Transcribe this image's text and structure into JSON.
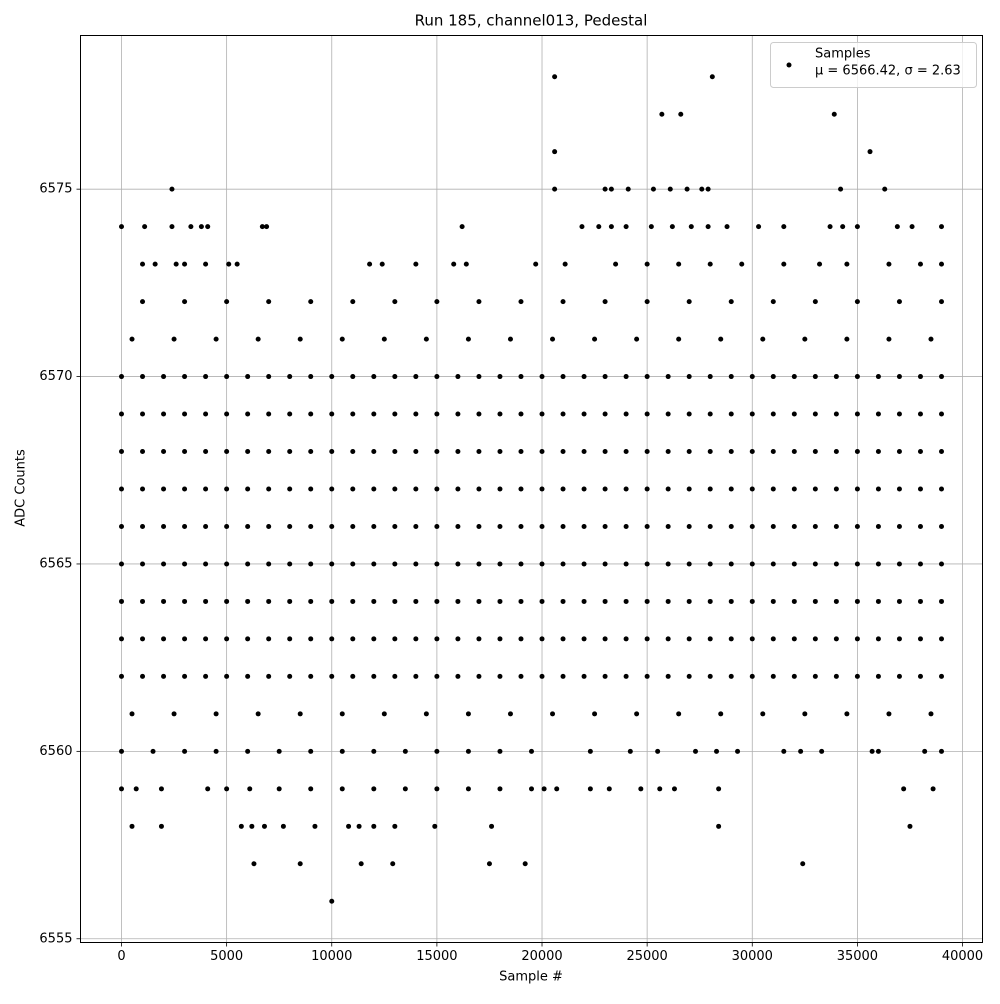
{
  "chart_data": {
    "type": "scatter",
    "title": "Run 185, channel013, Pedestal",
    "x_label": "Sample #",
    "y_label": "ADC Counts",
    "xlim": [
      -1950,
      40950
    ],
    "ylim": [
      6554.9,
      6579.1
    ],
    "xticks": [
      0,
      5000,
      10000,
      15000,
      20000,
      25000,
      30000,
      35000,
      40000
    ],
    "yticks": [
      6555,
      6560,
      6565,
      6570,
      6575
    ],
    "grid": true,
    "legend": "upper right",
    "series": [
      {
        "name": "Samples",
        "stats": "μ = 6566.42, σ = 2.63",
        "color": "#000000",
        "x": [
          0,
          1000,
          2000,
          3000,
          4000,
          5000,
          6000,
          7000,
          8000,
          9000,
          10000,
          11000,
          12000,
          13000,
          14000,
          15000,
          16000,
          17000,
          18000,
          19000,
          20000,
          21000,
          22000,
          23000,
          24000,
          25000,
          26000,
          27000,
          28000,
          29000,
          30000,
          31000,
          32000,
          33000,
          34000,
          35000,
          36000,
          37000,
          38000,
          39000,
          0,
          1000,
          2000,
          3000,
          4000,
          5000,
          6000,
          7000,
          8000,
          9000,
          10000,
          11000,
          12000,
          13000,
          14000,
          15000,
          16000,
          17000,
          18000,
          19000,
          20000,
          21000,
          22000,
          23000,
          24000,
          25000,
          26000,
          27000,
          28000,
          29000,
          30000,
          31000,
          32000,
          33000,
          34000,
          35000,
          36000,
          37000,
          38000,
          39000,
          0,
          1000,
          2000,
          3000,
          4000,
          5000,
          6000,
          7000,
          8000,
          9000,
          10000,
          11000,
          12000,
          13000,
          14000,
          15000,
          16000,
          17000,
          18000,
          19000,
          20000,
          21000,
          22000,
          23000,
          24000,
          25000,
          26000,
          27000,
          28000,
          29000,
          30000,
          31000,
          32000,
          33000,
          34000,
          35000,
          36000,
          37000,
          38000,
          39000,
          0,
          1000,
          2000,
          3000,
          4000,
          5000,
          6000,
          7000,
          8000,
          9000,
          10000,
          11000,
          12000,
          13000,
          14000,
          15000,
          16000,
          17000,
          18000,
          19000,
          20000,
          21000,
          22000,
          23000,
          24000,
          25000,
          26000,
          27000,
          28000,
          29000,
          30000,
          31000,
          32000,
          33000,
          34000,
          35000,
          36000,
          37000,
          38000,
          39000,
          0,
          1000,
          2000,
          3000,
          4000,
          5000,
          6000,
          7000,
          8000,
          9000,
          10000,
          11000,
          12000,
          13000,
          14000,
          15000,
          16000,
          17000,
          18000,
          19000,
          20000,
          21000,
          22000,
          23000,
          24000,
          25000,
          26000,
          27000,
          28000,
          29000,
          30000,
          31000,
          32000,
          33000,
          34000,
          35000,
          36000,
          37000,
          38000,
          39000,
          0,
          1000,
          2000,
          3000,
          4000,
          5000,
          6000,
          7000,
          8000,
          9000,
          10000,
          11000,
          12000,
          13000,
          14000,
          15000,
          16000,
          17000,
          18000,
          19000,
          20000,
          21000,
          22000,
          23000,
          24000,
          25000,
          26000,
          27000,
          28000,
          29000,
          30000,
          31000,
          32000,
          33000,
          34000,
          35000,
          36000,
          37000,
          38000,
          39000,
          0,
          1000,
          2000,
          3000,
          4000,
          5000,
          6000,
          7000,
          8000,
          9000,
          10000,
          11000,
          12000,
          13000,
          14000,
          15000,
          16000,
          17000,
          18000,
          19000,
          20000,
          21000,
          22000,
          23000,
          24000,
          25000,
          26000,
          27000,
          28000,
          29000,
          30000,
          31000,
          32000,
          33000,
          34000,
          35000,
          36000,
          37000,
          38000,
          39000,
          0,
          1000,
          2000,
          3000,
          4000,
          5000,
          6000,
          7000,
          8000,
          9000,
          10000,
          11000,
          12000,
          13000,
          14000,
          15000,
          16000,
          17000,
          18000,
          19000,
          20000,
          21000,
          22000,
          23000,
          24000,
          25000,
          26000,
          27000,
          28000,
          29000,
          30000,
          31000,
          32000,
          33000,
          34000,
          35000,
          36000,
          37000,
          38000,
          39000,
          0,
          1000,
          2000,
          3000,
          4000,
          5000,
          6000,
          7000,
          8000,
          9000,
          10000,
          11000,
          12000,
          13000,
          14000,
          15000,
          16000,
          17000,
          18000,
          19000,
          20000,
          21000,
          22000,
          23000,
          24000,
          25000,
          26000,
          27000,
          28000,
          29000,
          30000,
          31000,
          32000,
          33000,
          34000,
          35000,
          36000,
          37000,
          38000,
          39000,
          500,
          2500,
          4500,
          6500,
          8500,
          10500,
          12500,
          14500,
          16500,
          18500,
          20500,
          22500,
          24500,
          26500,
          28500,
          30500,
          32500,
          34500,
          36500,
          38500,
          500,
          2500,
          4500,
          6500,
          8500,
          10500,
          12500,
          14500,
          16500,
          18500,
          20500,
          22500,
          24500,
          26500,
          28500,
          30500,
          32500,
          34500,
          36500,
          38500,
          1000,
          3000,
          5000,
          7000,
          9000,
          11000,
          13000,
          15000,
          17000,
          19000,
          21000,
          23000,
          25000,
          27000,
          29000,
          31000,
          33000,
          35000,
          37000,
          39000,
          0,
          1500,
          3000,
          4500,
          6000,
          7500,
          9000,
          10500,
          12000,
          13500,
          15000,
          16500,
          18000,
          19500,
          22300,
          24200,
          25500,
          27300,
          28300,
          29300,
          31500,
          32300,
          33300,
          35700,
          36000,
          38200,
          39000,
          0,
          700,
          1900,
          4100,
          5000,
          6100,
          7500,
          9000,
          10500,
          12000,
          13500,
          15000,
          16500,
          18000,
          19500,
          20100,
          20700,
          22300,
          23200,
          24700,
          25600,
          26300,
          28400,
          37200,
          38600,
          500,
          1900,
          5700,
          6200,
          6800,
          7700,
          9200,
          10800,
          11300,
          12000,
          13000,
          14900,
          17600,
          28400,
          37500,
          6300,
          8500,
          11400,
          12900,
          17500,
          19200,
          32400,
          10000,
          1000,
          1600,
          2600,
          3000,
          4000,
          5100,
          5500,
          11800,
          12400,
          14000,
          15800,
          16400,
          19700,
          21100,
          23500,
          25000,
          26500,
          28000,
          29500,
          31500,
          33200,
          34500,
          36500,
          38000,
          39000,
          0,
          1100,
          2400,
          3300,
          3800,
          4100,
          6700,
          6900,
          16200,
          21900,
          22700,
          23300,
          24000,
          25200,
          26200,
          27100,
          27900,
          28800,
          30300,
          31500,
          33700,
          34300,
          35000,
          36900,
          37600,
          39000,
          2400,
          20600,
          23000,
          23300,
          24100,
          25300,
          26100,
          26900,
          27600,
          27900,
          34200,
          36300,
          20600,
          35600,
          25700,
          26600,
          33900,
          20600,
          28100
        ],
        "values": [
          6562,
          6562,
          6562,
          6562,
          6562,
          6562,
          6562,
          6562,
          6562,
          6562,
          6562,
          6562,
          6562,
          6562,
          6562,
          6562,
          6562,
          6562,
          6562,
          6562,
          6562,
          6562,
          6562,
          6562,
          6562,
          6562,
          6562,
          6562,
          6562,
          6562,
          6562,
          6562,
          6562,
          6562,
          6562,
          6562,
          6562,
          6562,
          6562,
          6562,
          6563,
          6563,
          6563,
          6563,
          6563,
          6563,
          6563,
          6563,
          6563,
          6563,
          6563,
          6563,
          6563,
          6563,
          6563,
          6563,
          6563,
          6563,
          6563,
          6563,
          6563,
          6563,
          6563,
          6563,
          6563,
          6563,
          6563,
          6563,
          6563,
          6563,
          6563,
          6563,
          6563,
          6563,
          6563,
          6563,
          6563,
          6563,
          6563,
          6563,
          6564,
          6564,
          6564,
          6564,
          6564,
          6564,
          6564,
          6564,
          6564,
          6564,
          6564,
          6564,
          6564,
          6564,
          6564,
          6564,
          6564,
          6564,
          6564,
          6564,
          6564,
          6564,
          6564,
          6564,
          6564,
          6564,
          6564,
          6564,
          6564,
          6564,
          6564,
          6564,
          6564,
          6564,
          6564,
          6564,
          6564,
          6564,
          6564,
          6564,
          6565,
          6565,
          6565,
          6565,
          6565,
          6565,
          6565,
          6565,
          6565,
          6565,
          6565,
          6565,
          6565,
          6565,
          6565,
          6565,
          6565,
          6565,
          6565,
          6565,
          6565,
          6565,
          6565,
          6565,
          6565,
          6565,
          6565,
          6565,
          6565,
          6565,
          6565,
          6565,
          6565,
          6565,
          6565,
          6565,
          6565,
          6565,
          6565,
          6565,
          6566,
          6566,
          6566,
          6566,
          6566,
          6566,
          6566,
          6566,
          6566,
          6566,
          6566,
          6566,
          6566,
          6566,
          6566,
          6566,
          6566,
          6566,
          6566,
          6566,
          6566,
          6566,
          6566,
          6566,
          6566,
          6566,
          6566,
          6566,
          6566,
          6566,
          6566,
          6566,
          6566,
          6566,
          6566,
          6566,
          6566,
          6566,
          6566,
          6566,
          6567,
          6567,
          6567,
          6567,
          6567,
          6567,
          6567,
          6567,
          6567,
          6567,
          6567,
          6567,
          6567,
          6567,
          6567,
          6567,
          6567,
          6567,
          6567,
          6567,
          6567,
          6567,
          6567,
          6567,
          6567,
          6567,
          6567,
          6567,
          6567,
          6567,
          6567,
          6567,
          6567,
          6567,
          6567,
          6567,
          6567,
          6567,
          6567,
          6567,
          6568,
          6568,
          6568,
          6568,
          6568,
          6568,
          6568,
          6568,
          6568,
          6568,
          6568,
          6568,
          6568,
          6568,
          6568,
          6568,
          6568,
          6568,
          6568,
          6568,
          6568,
          6568,
          6568,
          6568,
          6568,
          6568,
          6568,
          6568,
          6568,
          6568,
          6568,
          6568,
          6568,
          6568,
          6568,
          6568,
          6568,
          6568,
          6568,
          6568,
          6569,
          6569,
          6569,
          6569,
          6569,
          6569,
          6569,
          6569,
          6569,
          6569,
          6569,
          6569,
          6569,
          6569,
          6569,
          6569,
          6569,
          6569,
          6569,
          6569,
          6569,
          6569,
          6569,
          6569,
          6569,
          6569,
          6569,
          6569,
          6569,
          6569,
          6569,
          6569,
          6569,
          6569,
          6569,
          6569,
          6569,
          6569,
          6569,
          6569,
          6570,
          6570,
          6570,
          6570,
          6570,
          6570,
          6570,
          6570,
          6570,
          6570,
          6570,
          6570,
          6570,
          6570,
          6570,
          6570,
          6570,
          6570,
          6570,
          6570,
          6570,
          6570,
          6570,
          6570,
          6570,
          6570,
          6570,
          6570,
          6570,
          6570,
          6570,
          6570,
          6570,
          6570,
          6570,
          6570,
          6570,
          6570,
          6570,
          6570,
          6571,
          6571,
          6571,
          6571,
          6571,
          6571,
          6571,
          6571,
          6571,
          6571,
          6571,
          6571,
          6571,
          6571,
          6571,
          6571,
          6571,
          6571,
          6571,
          6571,
          6561,
          6561,
          6561,
          6561,
          6561,
          6561,
          6561,
          6561,
          6561,
          6561,
          6561,
          6561,
          6561,
          6561,
          6561,
          6561,
          6561,
          6561,
          6561,
          6561,
          6572,
          6572,
          6572,
          6572,
          6572,
          6572,
          6572,
          6572,
          6572,
          6572,
          6572,
          6572,
          6572,
          6572,
          6572,
          6572,
          6572,
          6572,
          6572,
          6572,
          6560,
          6560,
          6560,
          6560,
          6560,
          6560,
          6560,
          6560,
          6560,
          6560,
          6560,
          6560,
          6560,
          6560,
          6560,
          6560,
          6560,
          6560,
          6560,
          6560,
          6560,
          6560,
          6560,
          6560,
          6560,
          6560,
          6560,
          6559,
          6559,
          6559,
          6559,
          6559,
          6559,
          6559,
          6559,
          6559,
          6559,
          6559,
          6559,
          6559,
          6559,
          6559,
          6559,
          6559,
          6559,
          6559,
          6559,
          6559,
          6559,
          6559,
          6559,
          6559,
          6558,
          6558,
          6558,
          6558,
          6558,
          6558,
          6558,
          6558,
          6558,
          6558,
          6558,
          6558,
          6558,
          6558,
          6558,
          6557,
          6557,
          6557,
          6557,
          6557,
          6557,
          6557,
          6556,
          6573,
          6573,
          6573,
          6573,
          6573,
          6573,
          6573,
          6573,
          6573,
          6573,
          6573,
          6573,
          6573,
          6573,
          6573,
          6573,
          6573,
          6573,
          6573,
          6573,
          6573,
          6573,
          6573,
          6573,
          6573,
          6574,
          6574,
          6574,
          6574,
          6574,
          6574,
          6574,
          6574,
          6574,
          6574,
          6574,
          6574,
          6574,
          6574,
          6574,
          6574,
          6574,
          6574,
          6574,
          6574,
          6574,
          6574,
          6574,
          6574,
          6574,
          6574,
          6575,
          6575,
          6575,
          6575,
          6575,
          6575,
          6575,
          6575,
          6575,
          6575,
          6575,
          6575,
          6576,
          6576,
          6577,
          6577,
          6577,
          6578,
          6578
        ]
      }
    ]
  }
}
